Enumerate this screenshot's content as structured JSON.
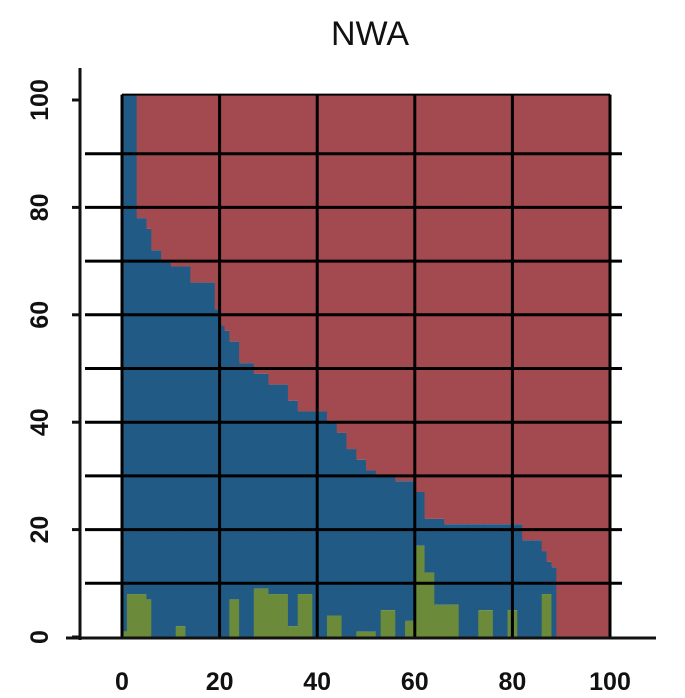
{
  "chart_data": {
    "type": "bar",
    "title": "NWA",
    "xlabel": "",
    "ylabel": "",
    "stacked": true,
    "xlim": [
      0,
      100
    ],
    "ylim": [
      0,
      100
    ],
    "x_ticks": [
      "0",
      "20",
      "40",
      "60",
      "80",
      "100"
    ],
    "y_ticks": [
      "0",
      "20",
      "40",
      "60",
      "80",
      "100"
    ],
    "grid": true,
    "colors": {
      "top": "#a24a4f",
      "middle": "#215b85",
      "bottom": "#6b8a3a",
      "grid": "#000000"
    },
    "x_edges": [
      0,
      1,
      3,
      5,
      6,
      8,
      10,
      11,
      12,
      13,
      14,
      15,
      17,
      18,
      19,
      20,
      21,
      22,
      24,
      26,
      27,
      29,
      30,
      32,
      33,
      34,
      35,
      36,
      39,
      40,
      42,
      44,
      45,
      46,
      48,
      50,
      51,
      52,
      53,
      54,
      56,
      58,
      59,
      60,
      61,
      62,
      63,
      64,
      65,
      66,
      69,
      71,
      72,
      73,
      74,
      76,
      78,
      79,
      81,
      82,
      84,
      85,
      86,
      87,
      88,
      89,
      90,
      100
    ],
    "series": [
      {
        "values": [
          0,
          0,
          0,
          0,
          0,
          0,
          0,
          0,
          0,
          0,
          0,
          0,
          0,
          0,
          0,
          0,
          0,
          0,
          0,
          0,
          0,
          0,
          0,
          0,
          0,
          0,
          0,
          0,
          0,
          0,
          0,
          0,
          0,
          0,
          0,
          0,
          0,
          0,
          0,
          0,
          0,
          0,
          0,
          0,
          0,
          0,
          0,
          0,
          0,
          0,
          0,
          0,
          0,
          0,
          0,
          0,
          0,
          0,
          0,
          0,
          0,
          0,
          0,
          0,
          0,
          0,
          0
        ]
      },
      {
        "values": [
          0,
          0,
          0,
          0,
          0,
          0,
          0,
          0,
          0,
          0,
          0,
          0,
          0,
          0,
          0,
          0,
          0,
          0,
          0,
          0,
          0,
          0,
          0,
          0,
          0,
          0,
          0,
          0,
          0,
          0,
          0,
          0,
          0,
          0,
          0,
          0,
          0,
          0,
          0,
          0,
          0,
          0,
          0,
          0,
          0,
          0,
          0,
          0,
          0,
          0,
          0,
          0,
          0,
          0,
          0,
          0,
          0,
          0,
          0,
          0,
          0,
          0,
          0,
          0,
          0,
          0,
          0
        ]
      },
      {
        "values": [
          0,
          0,
          0,
          0,
          0,
          0,
          0,
          0,
          0,
          0,
          0,
          0,
          0,
          0,
          0,
          0,
          0,
          0,
          0,
          0,
          0,
          0,
          0,
          0,
          0,
          0,
          0,
          0,
          0,
          0,
          0,
          0,
          0,
          0,
          0,
          0,
          0,
          0,
          0,
          0,
          0,
          0,
          0,
          0,
          0,
          0,
          0,
          0,
          0,
          0,
          0,
          0,
          0,
          0,
          0,
          0,
          0,
          0,
          0,
          0,
          0,
          0,
          0,
          0,
          0,
          0,
          0
        ]
      }
    ],
    "bottom_values": [
      1,
      8,
      8,
      7,
      0,
      0,
      0,
      2,
      2,
      0,
      0,
      0,
      0,
      0,
      0,
      0,
      0,
      7,
      0,
      0,
      9,
      9,
      8,
      8,
      8,
      2,
      2,
      8,
      0,
      0,
      4,
      4,
      0,
      0,
      1,
      1,
      1,
      0,
      5,
      5,
      0,
      3,
      3,
      17,
      17,
      12,
      12,
      6,
      6,
      6,
      0,
      0,
      0,
      5,
      5,
      0,
      0,
      5,
      0,
      0,
      0,
      0,
      8,
      8,
      0,
      0,
      0
    ],
    "middle_top": [
      101,
      101,
      78,
      76,
      72,
      70,
      69,
      69,
      69,
      69,
      66,
      66,
      66,
      66,
      61,
      58,
      57,
      55,
      51,
      51,
      49,
      49,
      47,
      47,
      47,
      44,
      44,
      42,
      42,
      42,
      40,
      38,
      38,
      35,
      33,
      31,
      31,
      30,
      30,
      30,
      29,
      29,
      29,
      27,
      27,
      22,
      22,
      22,
      22,
      21,
      21,
      21,
      21,
      21,
      21,
      21,
      21,
      21,
      21,
      18,
      18,
      18,
      16,
      14,
      13,
      0,
      0
    ]
  }
}
